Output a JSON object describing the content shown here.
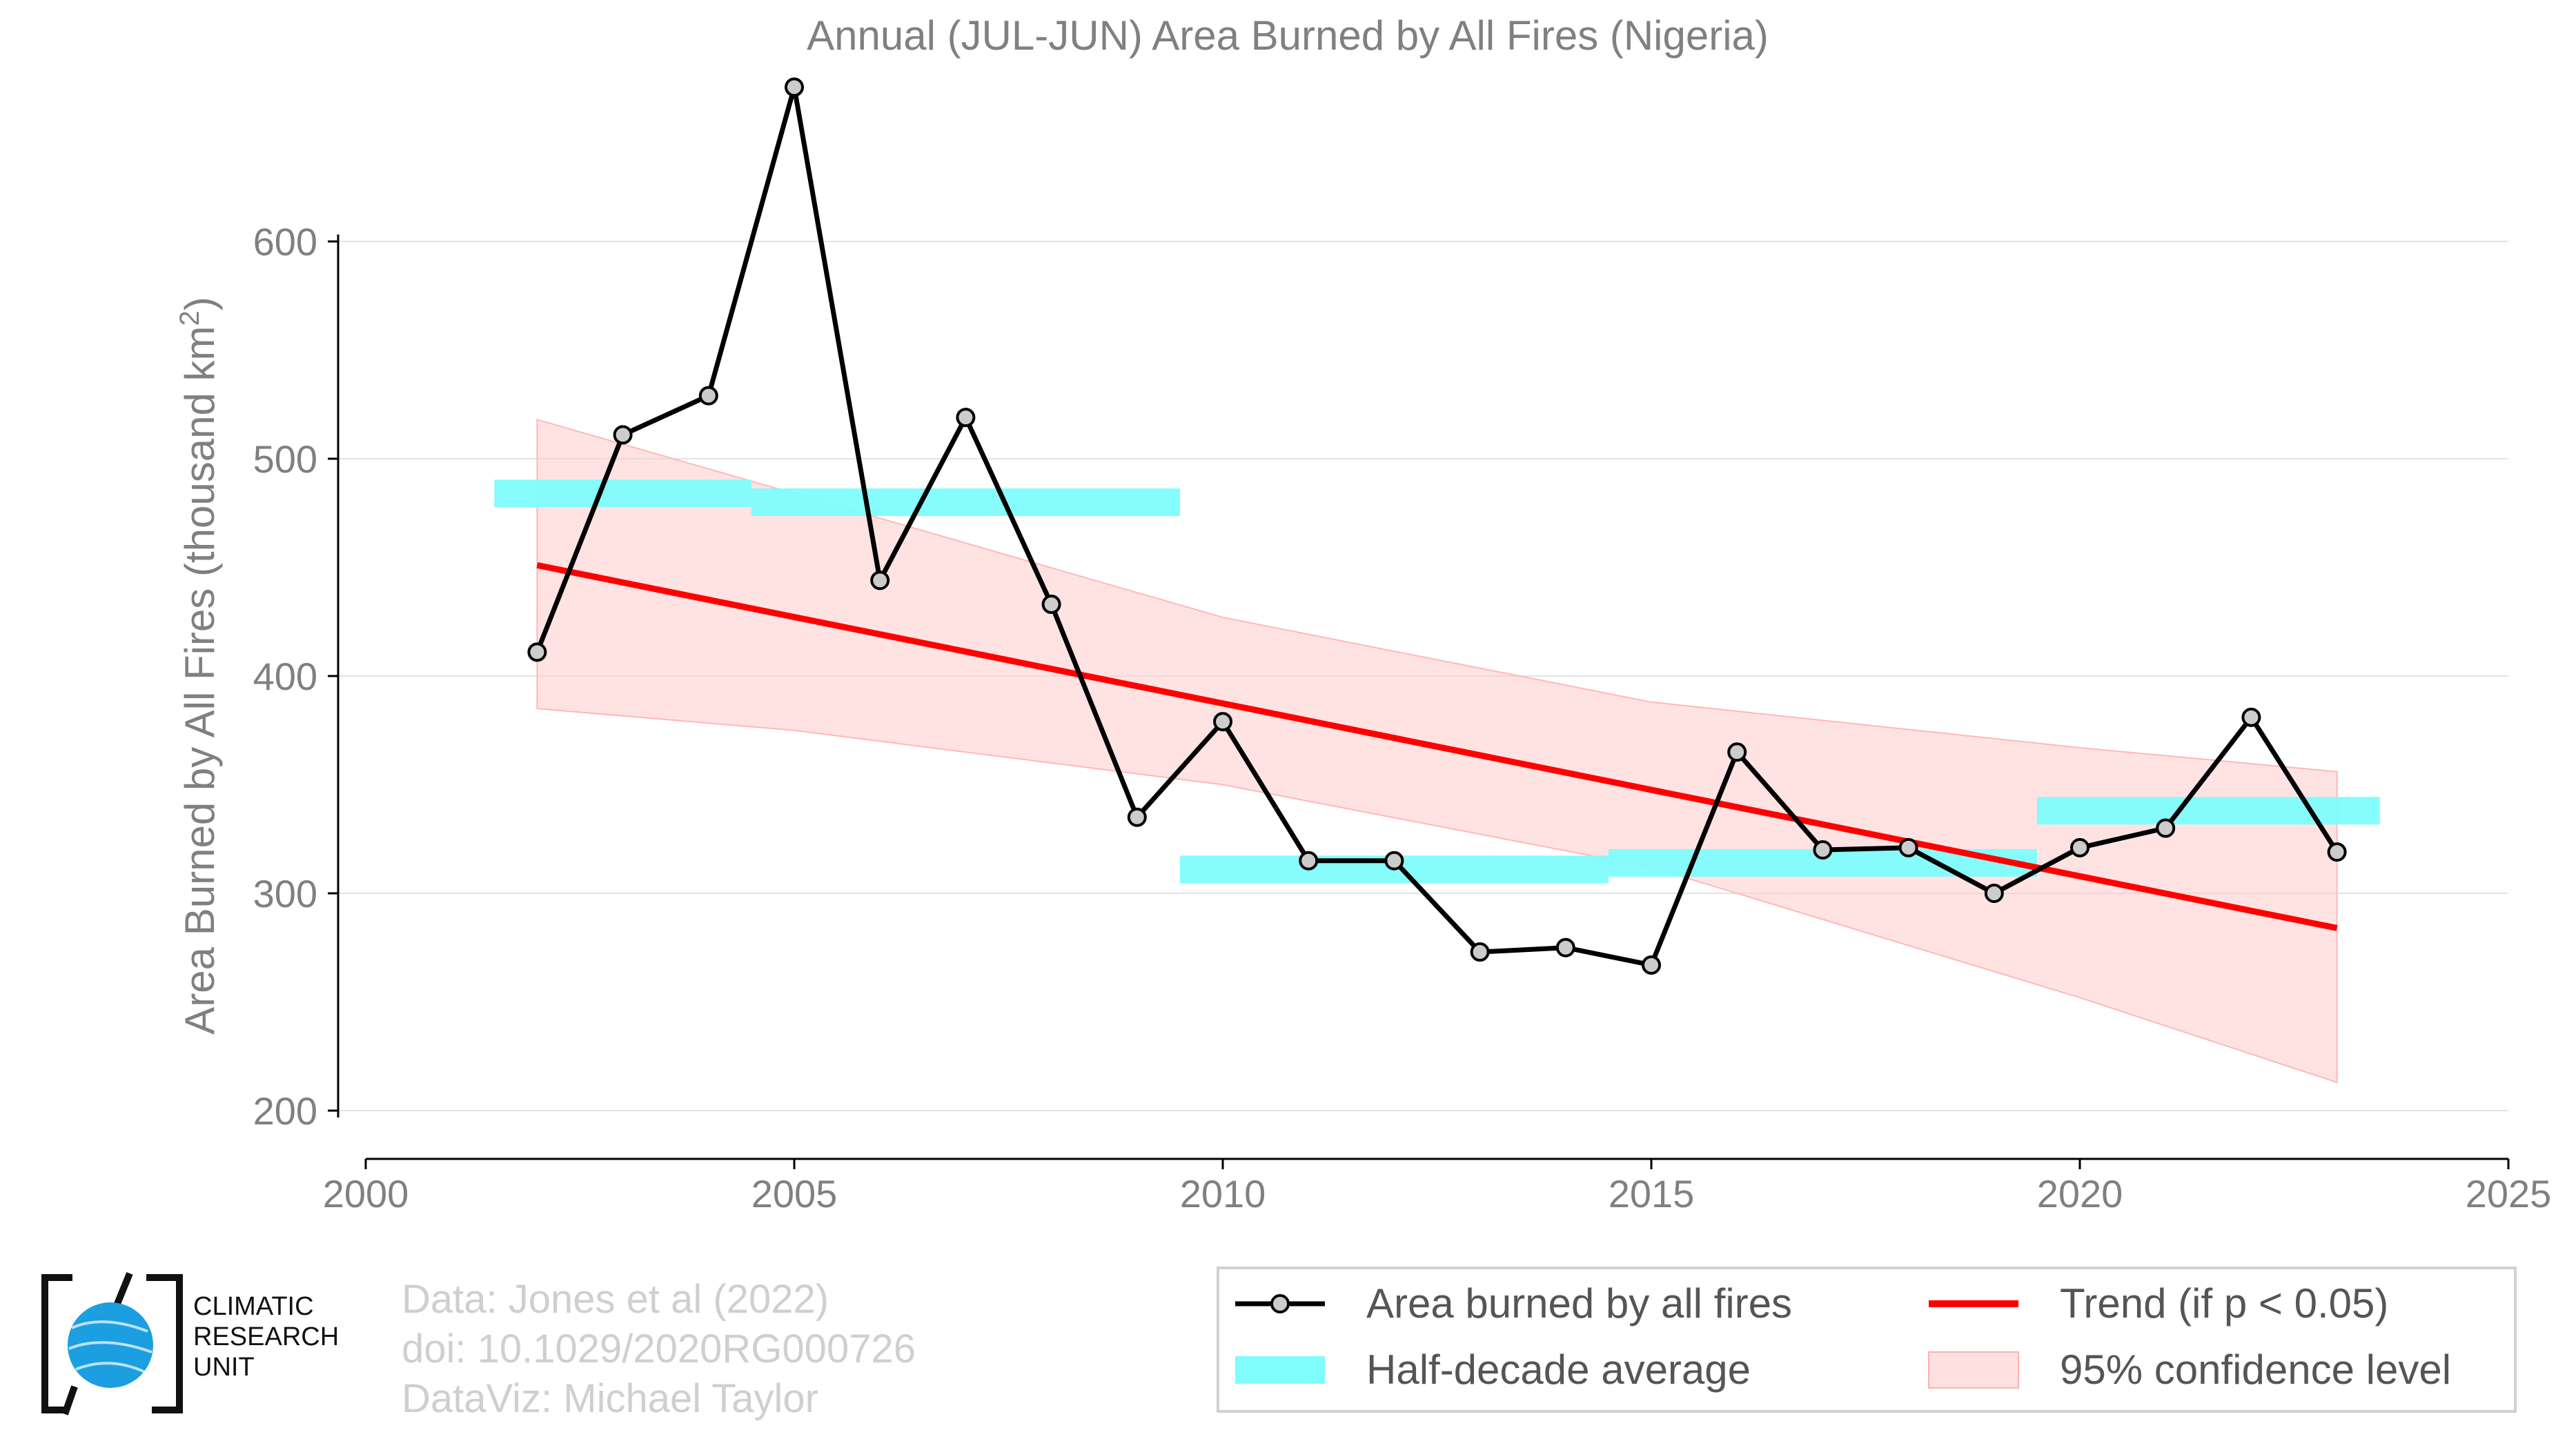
{
  "chart_data": {
    "type": "line",
    "title": "Annual (JUL-JUN) Area Burned by All Fires (Nigeria)",
    "xlabel": "",
    "ylabel": "Area Burned by All Fires (thousand km²)",
    "ylabel_parts": {
      "main": "Area Burned by All Fires (thousand km",
      "sup": "2",
      "end": ")"
    },
    "xlim": [
      2000,
      2025
    ],
    "ylim": [
      180,
      675
    ],
    "xticks": [
      2000,
      2005,
      2010,
      2015,
      2020,
      2025
    ],
    "yticks": [
      200,
      300,
      400,
      500,
      600
    ],
    "grid": "horizontal",
    "series": [
      {
        "name": "Area burned by all fires",
        "color": "#000000",
        "x": [
          2002,
          2003,
          2004,
          2005,
          2006,
          2007,
          2008,
          2009,
          2010,
          2011,
          2012,
          2013,
          2014,
          2015,
          2016,
          2017,
          2018,
          2019,
          2020,
          2021,
          2022,
          2023
        ],
        "y": [
          411,
          511,
          529,
          671,
          444,
          519,
          433,
          335,
          379,
          315,
          315,
          273,
          275,
          267,
          365,
          320,
          321,
          300,
          321,
          330,
          381,
          319
        ]
      }
    ],
    "half_decade_average": {
      "name": "Half-decade average",
      "color": "#7ffcfc",
      "segments": [
        {
          "x": [
            2001.5,
            2004.5
          ],
          "y": 484
        },
        {
          "x": [
            2004.5,
            2009.5
          ],
          "y": 480
        },
        {
          "x": [
            2009.5,
            2014.5
          ],
          "y": 311
        },
        {
          "x": [
            2014.5,
            2019.5
          ],
          "y": 314
        },
        {
          "x": [
            2019.5,
            2023.5
          ],
          "y": 338
        }
      ]
    },
    "trend": {
      "name": "Trend (if p < 0.05)",
      "color": "#ff0000",
      "x": [
        2002,
        2023
      ],
      "y": [
        451,
        284
      ]
    },
    "confidence": {
      "name": "95% confidence level",
      "color": "#ffcccc",
      "x": [
        2002,
        2005,
        2010,
        2015,
        2020,
        2023
      ],
      "upper": [
        518,
        484,
        427,
        388,
        367,
        356
      ],
      "lower": [
        385,
        375,
        350,
        312,
        252,
        213
      ]
    },
    "legend_placement": "bottom-right"
  },
  "credits": {
    "line1": "Data: Jones et al (2022)",
    "line2": "doi: 10.1029/2020RG000726",
    "line3": "DataViz: Michael Taylor"
  },
  "logo": {
    "line1": "CLIMATIC",
    "line2": "RESEARCH",
    "line3": "UNIT"
  }
}
